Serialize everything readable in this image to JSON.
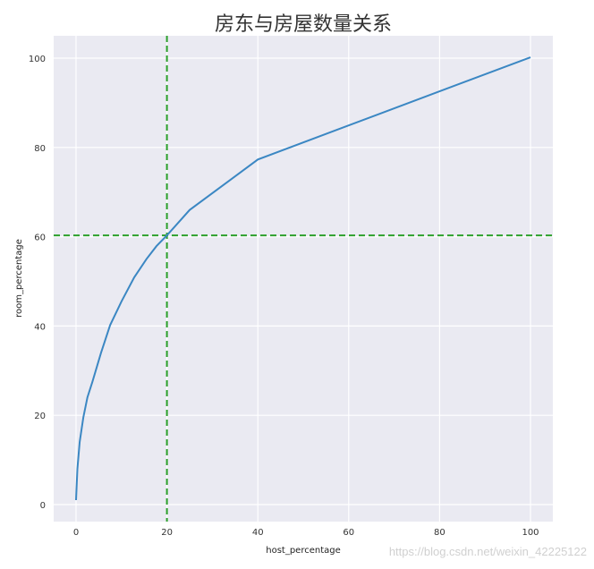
{
  "chart_data": {
    "type": "line",
    "title": "房东与房屋数量关系",
    "xlabel": "host_percentage",
    "ylabel": "room_percentage",
    "xlim": [
      -5,
      105
    ],
    "ylim": [
      -4,
      105
    ],
    "xticks": [
      0,
      20,
      40,
      60,
      80,
      100
    ],
    "yticks": [
      0,
      20,
      40,
      60,
      80,
      100
    ],
    "grid": true,
    "series": [
      {
        "color": "#3b87c3",
        "x": [
          0,
          0.3,
          0.8,
          1.6,
          2.5,
          3.6,
          5.5,
          7.5,
          10,
          12.8,
          15.5,
          17.7,
          20,
          25,
          40,
          100
        ],
        "y": [
          1,
          8,
          14,
          19.5,
          24,
          27.5,
          34,
          40.2,
          45.5,
          50.9,
          55,
          57.9,
          60.3,
          66,
          77.3,
          100.2
        ]
      }
    ],
    "reference_lines": [
      {
        "axis": "x",
        "value": 20,
        "color": "#2ca02c",
        "style": "dashed"
      },
      {
        "axis": "y",
        "value": 60.3,
        "color": "#2ca02c",
        "style": "dashed"
      }
    ],
    "background": "#eaeaf2"
  },
  "watermark": "https://blog.csdn.net/weixin_42225122"
}
